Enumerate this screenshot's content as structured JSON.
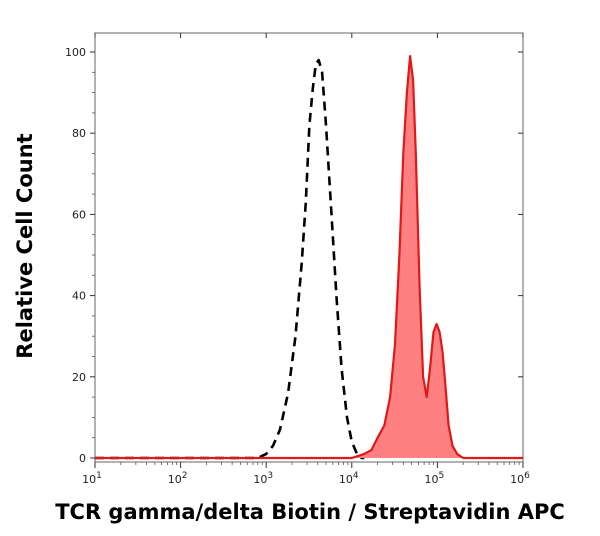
{
  "chart_data": {
    "type": "line",
    "xlabel": "TCR gamma/delta Biotin / Streptavidin APC",
    "ylabel": "Relative Cell Count",
    "xscale": "log",
    "xlim": [
      10,
      1000000
    ],
    "ylim": [
      0,
      105
    ],
    "grid": false,
    "legend": "none",
    "x_ticks": [
      {
        "value": 10,
        "base": "10",
        "exp": "1"
      },
      {
        "value": 100,
        "base": "10",
        "exp": "2"
      },
      {
        "value": 1000,
        "base": "10",
        "exp": "3"
      },
      {
        "value": 10000,
        "base": "10",
        "exp": "4"
      },
      {
        "value": 100000,
        "base": "10",
        "exp": "5"
      },
      {
        "value": 1000000,
        "base": "10",
        "exp": "6"
      }
    ],
    "y_ticks": [
      {
        "value": 0,
        "label": "0"
      },
      {
        "value": 20,
        "label": "20"
      },
      {
        "value": 40,
        "label": "40"
      },
      {
        "value": 60,
        "label": "60"
      },
      {
        "value": 80,
        "label": "80"
      },
      {
        "value": 100,
        "label": "100"
      }
    ],
    "series": [
      {
        "style": "dashed",
        "color": "#000000",
        "x": [
          10,
          50,
          200,
          800,
          1000,
          1200,
          1450,
          1800,
          2200,
          2600,
          2900,
          3200,
          3500,
          3800,
          4100,
          4500,
          5000,
          5800,
          6600,
          7600,
          8800,
          10000,
          11500,
          13000,
          14000
        ],
        "y": [
          0,
          0,
          0,
          0,
          1,
          3,
          7,
          16,
          30,
          48,
          63,
          82,
          91,
          97,
          98,
          95,
          82,
          60,
          40,
          22,
          10,
          4,
          1,
          0,
          0
        ]
      },
      {
        "style": "filled",
        "color": "#e01818",
        "fill": "#ff8080",
        "x": [
          10,
          1000,
          10000,
          14000,
          17000,
          20000,
          24000,
          28000,
          32000,
          36000,
          40000,
          44000,
          48000,
          52000,
          56000,
          62000,
          68000,
          75000,
          82000,
          90000,
          98000,
          106000,
          115000,
          125000,
          135000,
          150000,
          170000,
          200000,
          240000,
          300000,
          400000,
          1000000
        ],
        "y": [
          0,
          0,
          0,
          1,
          2,
          5,
          8,
          15,
          28,
          50,
          75,
          90,
          99,
          93,
          75,
          42,
          20,
          15,
          22,
          31,
          33,
          31,
          26,
          17,
          8,
          3,
          1,
          0,
          0,
          0,
          0,
          0
        ]
      }
    ]
  }
}
